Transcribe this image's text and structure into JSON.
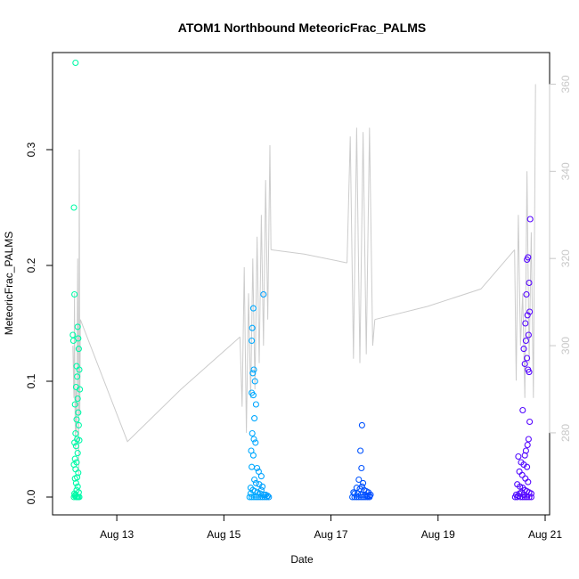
{
  "chart_data": {
    "type": "scatter",
    "title": "ATOM1 Northbound MeteoricFrac_PALMS",
    "xlabel": "Date",
    "ylabel": "MeteoricFrac_PALMS",
    "x_ticks": [
      "Aug 13",
      "Aug 15",
      "Aug 17",
      "Aug 19",
      "Aug 21"
    ],
    "xlim": [
      "Aug 12 2016 00:00",
      "Aug 21 2016 00:00"
    ],
    "ylim": [
      0,
      0.37
    ],
    "y_ticks": [
      "0.0",
      "0.1",
      "0.2",
      "0.3"
    ],
    "y2lim": [
      262,
      365
    ],
    "y2_ticks": [
      "280",
      "300",
      "320",
      "340",
      "360"
    ],
    "secondary_series_color": "#cccccc",
    "point_color_scale": [
      "#00ffa0",
      "#00c0ff",
      "#0040ff",
      "#6000ff"
    ],
    "series": [
      {
        "values_at": "Aug 12",
        "points": [
          [
            0.2,
            0.25
          ],
          [
            0.21,
            0.175
          ],
          [
            0.18,
            0.14
          ],
          [
            0.19,
            0.135
          ],
          [
            0.23,
            0.375
          ],
          [
            0.27,
            0.147
          ],
          [
            0.28,
            0.137
          ],
          [
            0.29,
            0.128
          ],
          [
            0.25,
            0.113
          ],
          [
            0.3,
            0.11
          ],
          [
            0.26,
            0.104
          ],
          [
            0.24,
            0.095
          ],
          [
            0.31,
            0.093
          ],
          [
            0.27,
            0.085
          ],
          [
            0.22,
            0.08
          ],
          [
            0.28,
            0.073
          ],
          [
            0.25,
            0.067
          ],
          [
            0.29,
            0.062
          ],
          [
            0.23,
            0.055
          ],
          [
            0.26,
            0.05
          ],
          [
            0.3,
            0.049
          ],
          [
            0.21,
            0.047
          ],
          [
            0.24,
            0.044
          ],
          [
            0.27,
            0.038
          ],
          [
            0.22,
            0.033
          ],
          [
            0.25,
            0.03
          ],
          [
            0.2,
            0.028
          ],
          [
            0.23,
            0.024
          ],
          [
            0.28,
            0.021
          ],
          [
            0.26,
            0.017
          ],
          [
            0.22,
            0.016
          ],
          [
            0.24,
            0.012
          ],
          [
            0.27,
            0.009
          ],
          [
            0.25,
            0.006
          ],
          [
            0.21,
            0.003
          ],
          [
            0.23,
            0.002
          ],
          [
            0.26,
            0.0
          ],
          [
            0.28,
            0.0
          ],
          [
            0.3,
            0.0
          ],
          [
            0.2,
            0.0
          ],
          [
            0.24,
            0.0
          ],
          [
            0.22,
            0.001
          ],
          [
            0.29,
            0.004
          ]
        ]
      },
      {
        "values_at": "Aug 15",
        "points": [
          [
            15.55,
            0.163
          ],
          [
            15.53,
            0.146
          ],
          [
            15.52,
            0.135
          ],
          [
            15.74,
            0.175
          ],
          [
            15.56,
            0.11
          ],
          [
            15.54,
            0.107
          ],
          [
            15.58,
            0.1
          ],
          [
            15.52,
            0.09
          ],
          [
            15.55,
            0.088
          ],
          [
            15.6,
            0.08
          ],
          [
            15.57,
            0.068
          ],
          [
            15.53,
            0.055
          ],
          [
            15.56,
            0.05
          ],
          [
            15.59,
            0.047
          ],
          [
            15.51,
            0.04
          ],
          [
            15.55,
            0.036
          ],
          [
            15.62,
            0.025
          ],
          [
            15.52,
            0.026
          ],
          [
            15.65,
            0.022
          ],
          [
            15.7,
            0.018
          ],
          [
            15.57,
            0.015
          ],
          [
            15.6,
            0.012
          ],
          [
            15.66,
            0.011
          ],
          [
            15.72,
            0.009
          ],
          [
            15.5,
            0.008
          ],
          [
            15.54,
            0.006
          ],
          [
            15.58,
            0.005
          ],
          [
            15.63,
            0.004
          ],
          [
            15.68,
            0.003
          ],
          [
            15.74,
            0.002
          ],
          [
            15.78,
            0.002
          ],
          [
            15.82,
            0.001
          ],
          [
            15.48,
            0.0
          ],
          [
            15.52,
            0.0
          ],
          [
            15.56,
            0.0
          ],
          [
            15.6,
            0.0
          ],
          [
            15.64,
            0.0
          ],
          [
            15.68,
            0.0
          ],
          [
            15.72,
            0.0
          ],
          [
            15.76,
            0.0
          ],
          [
            15.8,
            0.0
          ],
          [
            15.84,
            0.0
          ],
          [
            15.5,
            0.003
          ],
          [
            15.7,
            0.006
          ]
        ]
      },
      {
        "values_at": "Aug 17",
        "points": [
          [
            17.58,
            0.062
          ],
          [
            17.55,
            0.04
          ],
          [
            17.57,
            0.025
          ],
          [
            17.52,
            0.015
          ],
          [
            17.6,
            0.012
          ],
          [
            17.48,
            0.008
          ],
          [
            17.54,
            0.007
          ],
          [
            17.62,
            0.006
          ],
          [
            17.66,
            0.005
          ],
          [
            17.7,
            0.004
          ],
          [
            17.44,
            0.003
          ],
          [
            17.5,
            0.003
          ],
          [
            17.56,
            0.002
          ],
          [
            17.64,
            0.002
          ],
          [
            17.68,
            0.001
          ],
          [
            17.72,
            0.001
          ],
          [
            17.4,
            0.0
          ],
          [
            17.44,
            0.0
          ],
          [
            17.48,
            0.0
          ],
          [
            17.52,
            0.0
          ],
          [
            17.56,
            0.0
          ],
          [
            17.6,
            0.0
          ],
          [
            17.64,
            0.0
          ],
          [
            17.68,
            0.0
          ],
          [
            17.72,
            0.0
          ],
          [
            17.74,
            0.002
          ],
          [
            17.42,
            0.004
          ],
          [
            17.58,
            0.009
          ]
        ]
      },
      {
        "values_at": "Aug 20",
        "points": [
          [
            20.72,
            0.24
          ],
          [
            20.68,
            0.207
          ],
          [
            20.66,
            0.205
          ],
          [
            20.7,
            0.185
          ],
          [
            20.65,
            0.175
          ],
          [
            20.71,
            0.16
          ],
          [
            20.67,
            0.157
          ],
          [
            20.63,
            0.15
          ],
          [
            20.69,
            0.14
          ],
          [
            20.64,
            0.135
          ],
          [
            20.6,
            0.128
          ],
          [
            20.66,
            0.12
          ],
          [
            20.62,
            0.115
          ],
          [
            20.68,
            0.11
          ],
          [
            20.7,
            0.108
          ],
          [
            20.58,
            0.075
          ],
          [
            20.71,
            0.065
          ],
          [
            20.69,
            0.05
          ],
          [
            20.67,
            0.045
          ],
          [
            20.64,
            0.04
          ],
          [
            20.62,
            0.036
          ],
          [
            20.5,
            0.035
          ],
          [
            20.55,
            0.03
          ],
          [
            20.6,
            0.028
          ],
          [
            20.66,
            0.026
          ],
          [
            20.52,
            0.022
          ],
          [
            20.57,
            0.019
          ],
          [
            20.63,
            0.016
          ],
          [
            20.68,
            0.013
          ],
          [
            20.48,
            0.011
          ],
          [
            20.53,
            0.009
          ],
          [
            20.58,
            0.008
          ],
          [
            20.62,
            0.006
          ],
          [
            20.66,
            0.005
          ],
          [
            20.7,
            0.004
          ],
          [
            20.74,
            0.003
          ],
          [
            20.46,
            0.002
          ],
          [
            20.5,
            0.001
          ],
          [
            20.54,
            0.0
          ],
          [
            20.58,
            0.0
          ],
          [
            20.62,
            0.0
          ],
          [
            20.66,
            0.0
          ],
          [
            20.7,
            0.0
          ],
          [
            20.74,
            0.0
          ],
          [
            20.44,
            0.0
          ],
          [
            20.48,
            0.0
          ],
          [
            20.52,
            0.003
          ],
          [
            20.56,
            0.004
          ],
          [
            20.6,
            0.002
          ]
        ]
      }
    ],
    "secondary_trace_segments": [
      {
        "x": [
          12.18,
          12.2,
          12.21,
          12.22,
          12.23,
          12.24,
          12.25,
          12.26,
          12.27,
          12.28,
          12.29,
          12.3,
          12.31,
          12.32,
          13.2,
          14.2,
          15.3
        ],
        "y": [
          300,
          288,
          312,
          286,
          276,
          290,
          280,
          300,
          320,
          296,
          270,
          345,
          284,
          306,
          278,
          290,
          302
        ]
      },
      {
        "x": [
          15.3,
          15.34,
          15.38,
          15.42,
          15.46,
          15.5,
          15.54,
          15.58,
          15.62,
          15.66,
          15.7,
          15.74,
          15.78,
          15.82,
          15.86,
          15.88
        ],
        "y": [
          302,
          286,
          318,
          280,
          312,
          288,
          320,
          290,
          325,
          296,
          330,
          300,
          338,
          306,
          346,
          322
        ]
      },
      {
        "x": [
          15.88,
          16.5,
          17.3
        ],
        "y": [
          322,
          321,
          319
        ]
      },
      {
        "x": [
          17.3,
          17.36,
          17.42,
          17.48,
          17.54,
          17.6,
          17.66,
          17.72,
          17.78,
          17.82
        ],
        "y": [
          319,
          348,
          297,
          350,
          296,
          349,
          298,
          350,
          300,
          306
        ]
      },
      {
        "x": [
          17.82,
          18.8,
          19.8,
          20.43
        ],
        "y": [
          306,
          309,
          313,
          322
        ]
      },
      {
        "x": [
          20.43,
          20.46,
          20.5,
          20.54,
          20.58,
          20.62,
          20.66,
          20.7,
          20.74,
          20.78,
          20.82
        ],
        "y": [
          322,
          292,
          330,
          300,
          312,
          288,
          340,
          296,
          326,
          288,
          360
        ]
      }
    ]
  }
}
